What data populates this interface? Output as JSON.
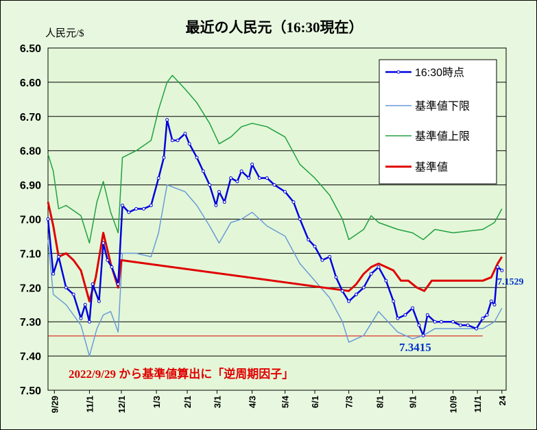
{
  "chart_data": {
    "type": "line",
    "title": "最近の人民元（16:30現在）",
    "ylabel": "人民元/$",
    "y_inverted": true,
    "ylim": [
      6.5,
      7.5
    ],
    "yticks": [
      "6.50",
      "6.60",
      "6.70",
      "6.80",
      "6.90",
      "7.00",
      "7.10",
      "7.20",
      "7.30",
      "7.40",
      "7.50"
    ],
    "grid": true,
    "legend_position": "top-right",
    "xlim": [
      "2022-09-23",
      "2023-11-28"
    ],
    "xticks": [
      {
        "date": "2022-09-29",
        "label": "9/29"
      },
      {
        "date": "2022-11-01",
        "label": "11/1"
      },
      {
        "date": "2022-12-01",
        "label": "12/1"
      },
      {
        "date": "2023-01-03",
        "label": "1/3"
      },
      {
        "date": "2023-02-01",
        "label": "2/1"
      },
      {
        "date": "2023-03-01",
        "label": "3/1"
      },
      {
        "date": "2023-04-03",
        "label": "4/3"
      },
      {
        "date": "2023-05-04",
        "label": "5/4"
      },
      {
        "date": "2023-06-01",
        "label": "6/1"
      },
      {
        "date": "2023-07-03",
        "label": "7/3"
      },
      {
        "date": "2023-08-01",
        "label": "8/1"
      },
      {
        "date": "2023-09-01",
        "label": "9/1"
      },
      {
        "date": "2023-10-09",
        "label": "10/9"
      },
      {
        "date": "2023-11-01",
        "label": "11/1"
      },
      {
        "date": "2023-11-24",
        "label": "24"
      }
    ],
    "series": [
      {
        "name": "16:30時点",
        "color": "#0000dd",
        "points": [
          [
            "2022-09-23",
            7.0
          ],
          [
            "2022-09-28",
            7.16
          ],
          [
            "2022-10-03",
            7.11
          ],
          [
            "2022-10-10",
            7.2
          ],
          [
            "2022-10-17",
            7.22
          ],
          [
            "2022-10-24",
            7.29
          ],
          [
            "2022-10-28",
            7.25
          ],
          [
            "2022-11-01",
            7.3
          ],
          [
            "2022-11-04",
            7.19
          ],
          [
            "2022-11-10",
            7.24
          ],
          [
            "2022-11-14",
            7.07
          ],
          [
            "2022-11-18",
            7.12
          ],
          [
            "2022-11-22",
            7.14
          ],
          [
            "2022-11-28",
            7.19
          ],
          [
            "2022-12-02",
            6.96
          ],
          [
            "2022-12-08",
            6.98
          ],
          [
            "2022-12-15",
            6.97
          ],
          [
            "2022-12-22",
            6.97
          ],
          [
            "2022-12-29",
            6.96
          ],
          [
            "2023-01-05",
            6.88
          ],
          [
            "2023-01-10",
            6.82
          ],
          [
            "2023-01-13",
            6.71
          ],
          [
            "2023-01-18",
            6.77
          ],
          [
            "2023-01-23",
            6.77
          ],
          [
            "2023-01-30",
            6.75
          ],
          [
            "2023-02-03",
            6.78
          ],
          [
            "2023-02-10",
            6.82
          ],
          [
            "2023-02-16",
            6.86
          ],
          [
            "2023-02-22",
            6.9
          ],
          [
            "2023-02-28",
            6.96
          ],
          [
            "2023-03-03",
            6.92
          ],
          [
            "2023-03-08",
            6.95
          ],
          [
            "2023-03-14",
            6.88
          ],
          [
            "2023-03-20",
            6.89
          ],
          [
            "2023-03-24",
            6.86
          ],
          [
            "2023-03-31",
            6.88
          ],
          [
            "2023-04-03",
            6.84
          ],
          [
            "2023-04-10",
            6.88
          ],
          [
            "2023-04-17",
            6.88
          ],
          [
            "2023-04-24",
            6.9
          ],
          [
            "2023-05-04",
            6.92
          ],
          [
            "2023-05-12",
            6.95
          ],
          [
            "2023-05-18",
            7.0
          ],
          [
            "2023-05-26",
            7.06
          ],
          [
            "2023-06-01",
            7.08
          ],
          [
            "2023-06-08",
            7.12
          ],
          [
            "2023-06-15",
            7.11
          ],
          [
            "2023-06-21",
            7.17
          ],
          [
            "2023-06-27",
            7.21
          ],
          [
            "2023-07-03",
            7.24
          ],
          [
            "2023-07-10",
            7.22
          ],
          [
            "2023-07-17",
            7.2
          ],
          [
            "2023-07-24",
            7.16
          ],
          [
            "2023-07-31",
            7.14
          ],
          [
            "2023-08-07",
            7.18
          ],
          [
            "2023-08-14",
            7.24
          ],
          [
            "2023-08-18",
            7.29
          ],
          [
            "2023-08-25",
            7.28
          ],
          [
            "2023-09-01",
            7.26
          ],
          [
            "2023-09-07",
            7.31
          ],
          [
            "2023-09-11",
            7.34
          ],
          [
            "2023-09-15",
            7.28
          ],
          [
            "2023-09-22",
            7.3
          ],
          [
            "2023-09-28",
            7.3
          ],
          [
            "2023-10-09",
            7.3
          ],
          [
            "2023-10-16",
            7.31
          ],
          [
            "2023-10-23",
            7.31
          ],
          [
            "2023-10-31",
            7.32
          ],
          [
            "2023-11-06",
            7.29
          ],
          [
            "2023-11-10",
            7.28
          ],
          [
            "2023-11-14",
            7.24
          ],
          [
            "2023-11-17",
            7.25
          ],
          [
            "2023-11-20",
            7.14
          ],
          [
            "2023-11-24",
            7.15
          ]
        ]
      },
      {
        "name": "基準値下限",
        "color": "#6a9ad6",
        "points": [
          [
            "2022-09-23",
            7.06
          ],
          [
            "2022-09-28",
            7.22
          ],
          [
            "2022-10-10",
            7.25
          ],
          [
            "2022-10-24",
            7.31
          ],
          [
            "2022-11-01",
            7.4
          ],
          [
            "2022-11-08",
            7.32
          ],
          [
            "2022-11-14",
            7.28
          ],
          [
            "2022-11-21",
            7.27
          ],
          [
            "2022-11-28",
            7.33
          ],
          [
            "2022-12-02",
            7.1
          ],
          [
            "2022-12-15",
            7.1
          ],
          [
            "2022-12-29",
            7.11
          ],
          [
            "2023-01-05",
            7.04
          ],
          [
            "2023-01-13",
            6.9
          ],
          [
            "2023-01-30",
            6.92
          ],
          [
            "2023-02-10",
            6.96
          ],
          [
            "2023-02-22",
            7.02
          ],
          [
            "2023-03-03",
            7.07
          ],
          [
            "2023-03-14",
            7.01
          ],
          [
            "2023-03-24",
            7.0
          ],
          [
            "2023-04-03",
            6.98
          ],
          [
            "2023-04-17",
            7.02
          ],
          [
            "2023-05-04",
            7.05
          ],
          [
            "2023-05-18",
            7.13
          ],
          [
            "2023-06-01",
            7.18
          ],
          [
            "2023-06-15",
            7.23
          ],
          [
            "2023-06-27",
            7.3
          ],
          [
            "2023-07-03",
            7.36
          ],
          [
            "2023-07-17",
            7.34
          ],
          [
            "2023-07-31",
            7.27
          ],
          [
            "2023-08-18",
            7.33
          ],
          [
            "2023-09-01",
            7.35
          ],
          [
            "2023-09-11",
            7.34
          ],
          [
            "2023-09-22",
            7.32
          ],
          [
            "2023-10-09",
            7.32
          ],
          [
            "2023-11-06",
            7.32
          ],
          [
            "2023-11-17",
            7.3
          ],
          [
            "2023-11-24",
            7.26
          ]
        ]
      },
      {
        "name": "基準値上限",
        "color": "#20a040",
        "points": [
          [
            "2022-09-23",
            6.81
          ],
          [
            "2022-09-28",
            6.86
          ],
          [
            "2022-10-03",
            6.97
          ],
          [
            "2022-10-10",
            6.96
          ],
          [
            "2022-10-24",
            6.99
          ],
          [
            "2022-11-01",
            7.07
          ],
          [
            "2022-11-08",
            6.95
          ],
          [
            "2022-11-14",
            6.89
          ],
          [
            "2022-11-21",
            6.98
          ],
          [
            "2022-11-28",
            7.04
          ],
          [
            "2022-12-02",
            6.82
          ],
          [
            "2022-12-15",
            6.8
          ],
          [
            "2022-12-29",
            6.77
          ],
          [
            "2023-01-05",
            6.68
          ],
          [
            "2023-01-13",
            6.6
          ],
          [
            "2023-01-18",
            6.58
          ],
          [
            "2023-01-30",
            6.62
          ],
          [
            "2023-02-10",
            6.66
          ],
          [
            "2023-02-22",
            6.72
          ],
          [
            "2023-03-03",
            6.78
          ],
          [
            "2023-03-14",
            6.76
          ],
          [
            "2023-03-24",
            6.73
          ],
          [
            "2023-04-03",
            6.72
          ],
          [
            "2023-04-17",
            6.73
          ],
          [
            "2023-05-04",
            6.76
          ],
          [
            "2023-05-18",
            6.84
          ],
          [
            "2023-06-01",
            6.88
          ],
          [
            "2023-06-15",
            6.93
          ],
          [
            "2023-06-27",
            7.0
          ],
          [
            "2023-07-03",
            7.06
          ],
          [
            "2023-07-17",
            7.03
          ],
          [
            "2023-07-24",
            6.99
          ],
          [
            "2023-07-31",
            7.01
          ],
          [
            "2023-08-18",
            7.03
          ],
          [
            "2023-09-01",
            7.04
          ],
          [
            "2023-09-11",
            7.06
          ],
          [
            "2023-09-22",
            7.03
          ],
          [
            "2023-10-09",
            7.04
          ],
          [
            "2023-11-06",
            7.03
          ],
          [
            "2023-11-17",
            7.01
          ],
          [
            "2023-11-24",
            6.97
          ]
        ]
      },
      {
        "name": "基準値",
        "color": "#e00000",
        "points": [
          [
            "2022-09-23",
            6.95
          ],
          [
            "2022-09-28",
            7.02
          ],
          [
            "2022-10-03",
            7.11
          ],
          [
            "2022-10-10",
            7.1
          ],
          [
            "2022-10-17",
            7.12
          ],
          [
            "2022-10-24",
            7.15
          ],
          [
            "2022-11-01",
            7.24
          ],
          [
            "2022-11-07",
            7.17
          ],
          [
            "2022-11-14",
            7.04
          ],
          [
            "2022-11-21",
            7.13
          ],
          [
            "2022-11-28",
            7.2
          ],
          [
            "2022-12-01",
            7.12
          ],
          [
            "2023-07-03",
            7.21
          ],
          [
            "2023-07-10",
            7.19
          ],
          [
            "2023-07-17",
            7.16
          ],
          [
            "2023-07-24",
            7.14
          ],
          [
            "2023-07-31",
            7.13
          ],
          [
            "2023-08-07",
            7.14
          ],
          [
            "2023-08-14",
            7.15
          ],
          [
            "2023-08-21",
            7.18
          ],
          [
            "2023-08-28",
            7.18
          ],
          [
            "2023-09-05",
            7.2
          ],
          [
            "2023-09-12",
            7.21
          ],
          [
            "2023-09-19",
            7.18
          ],
          [
            "2023-09-26",
            7.18
          ],
          [
            "2023-10-09",
            7.18
          ],
          [
            "2023-10-23",
            7.18
          ],
          [
            "2023-11-06",
            7.18
          ],
          [
            "2023-11-14",
            7.17
          ],
          [
            "2023-11-20",
            7.13
          ],
          [
            "2023-11-24",
            7.11
          ]
        ]
      }
    ],
    "reference_line": {
      "value": 7.3415,
      "color": "#e00000",
      "date_range": [
        "2022-09-23",
        "2023-11-06"
      ]
    },
    "annotations": [
      {
        "text": "7.3415",
        "color": "#0033cc"
      },
      {
        "text": "7.1529",
        "color": "#0033cc"
      },
      {
        "text": "2022/9/29 から基準値算出に「逆周期因子」",
        "color": "#e00000"
      }
    ]
  }
}
